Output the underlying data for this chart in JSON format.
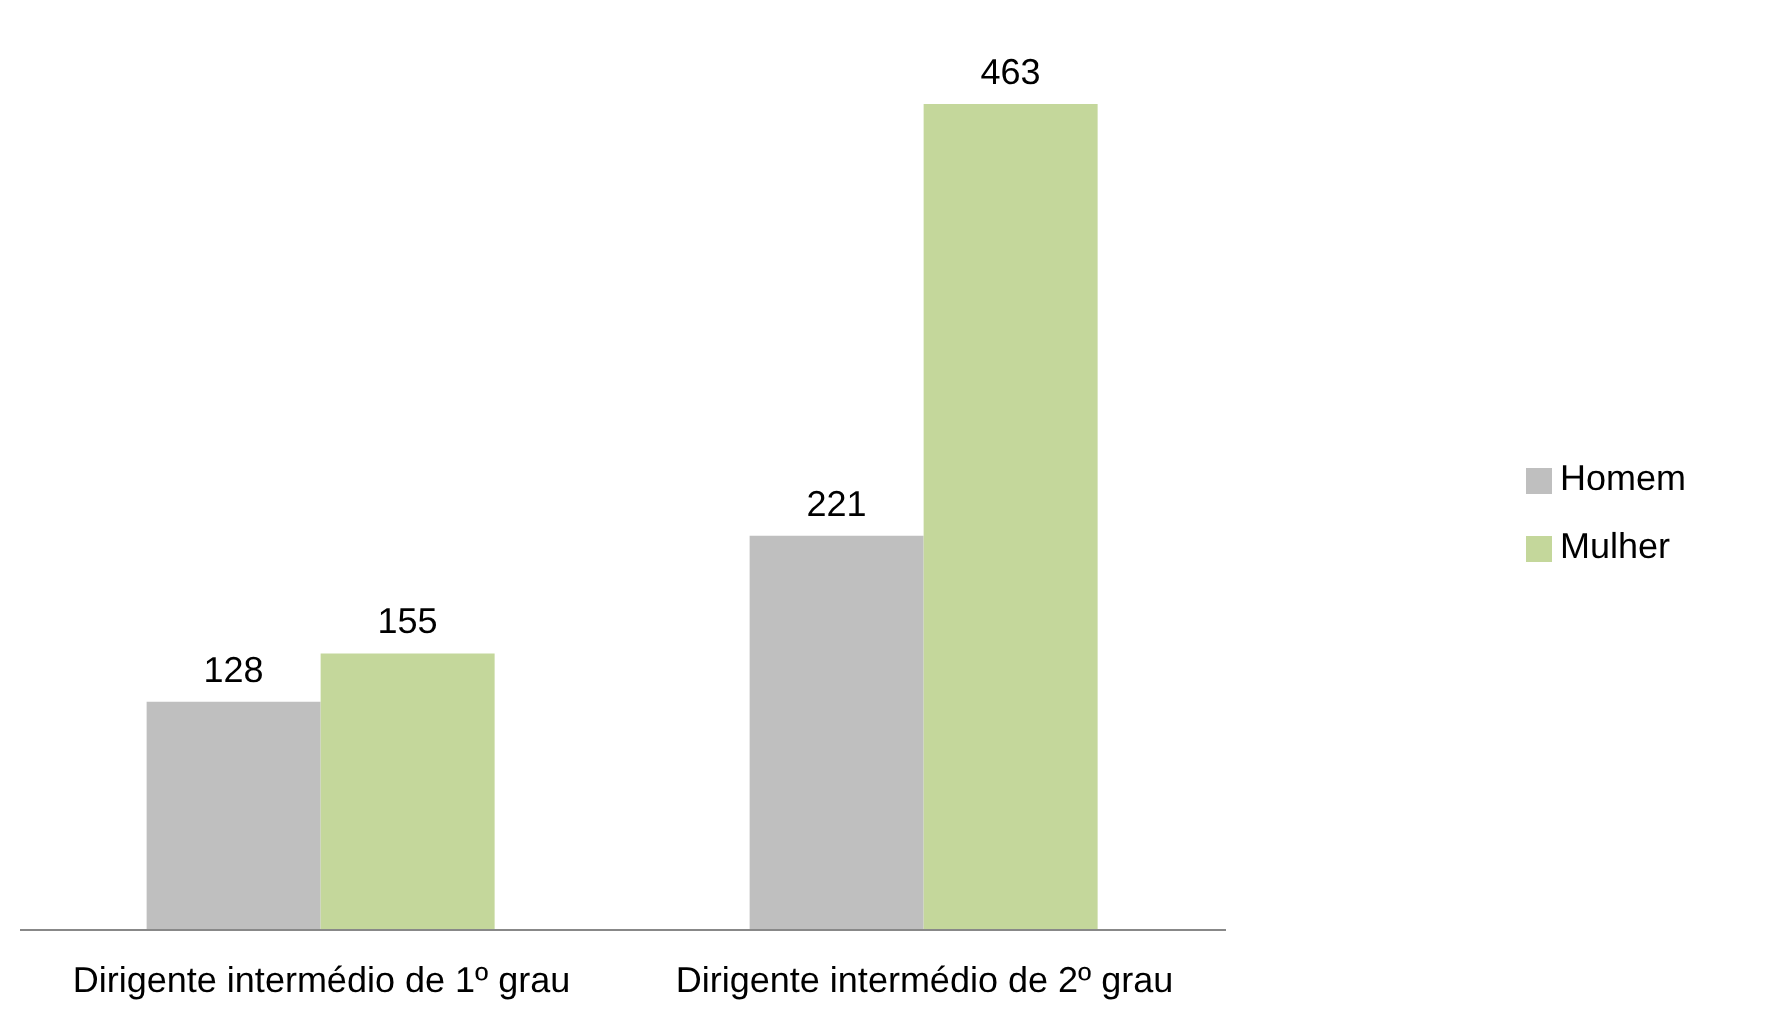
{
  "chart_data": {
    "type": "bar",
    "categories": [
      "Dirigente intermédio de 1º grau",
      "Dirigente intermédio de 2º grau"
    ],
    "series": [
      {
        "name": "Homem",
        "color": "#bfbfbf",
        "values": [
          128,
          221
        ]
      },
      {
        "name": "Mulher",
        "color": "#c4d79b",
        "values": [
          155,
          463
        ]
      }
    ],
    "data_labels": true,
    "grid": false,
    "legend": "right"
  }
}
